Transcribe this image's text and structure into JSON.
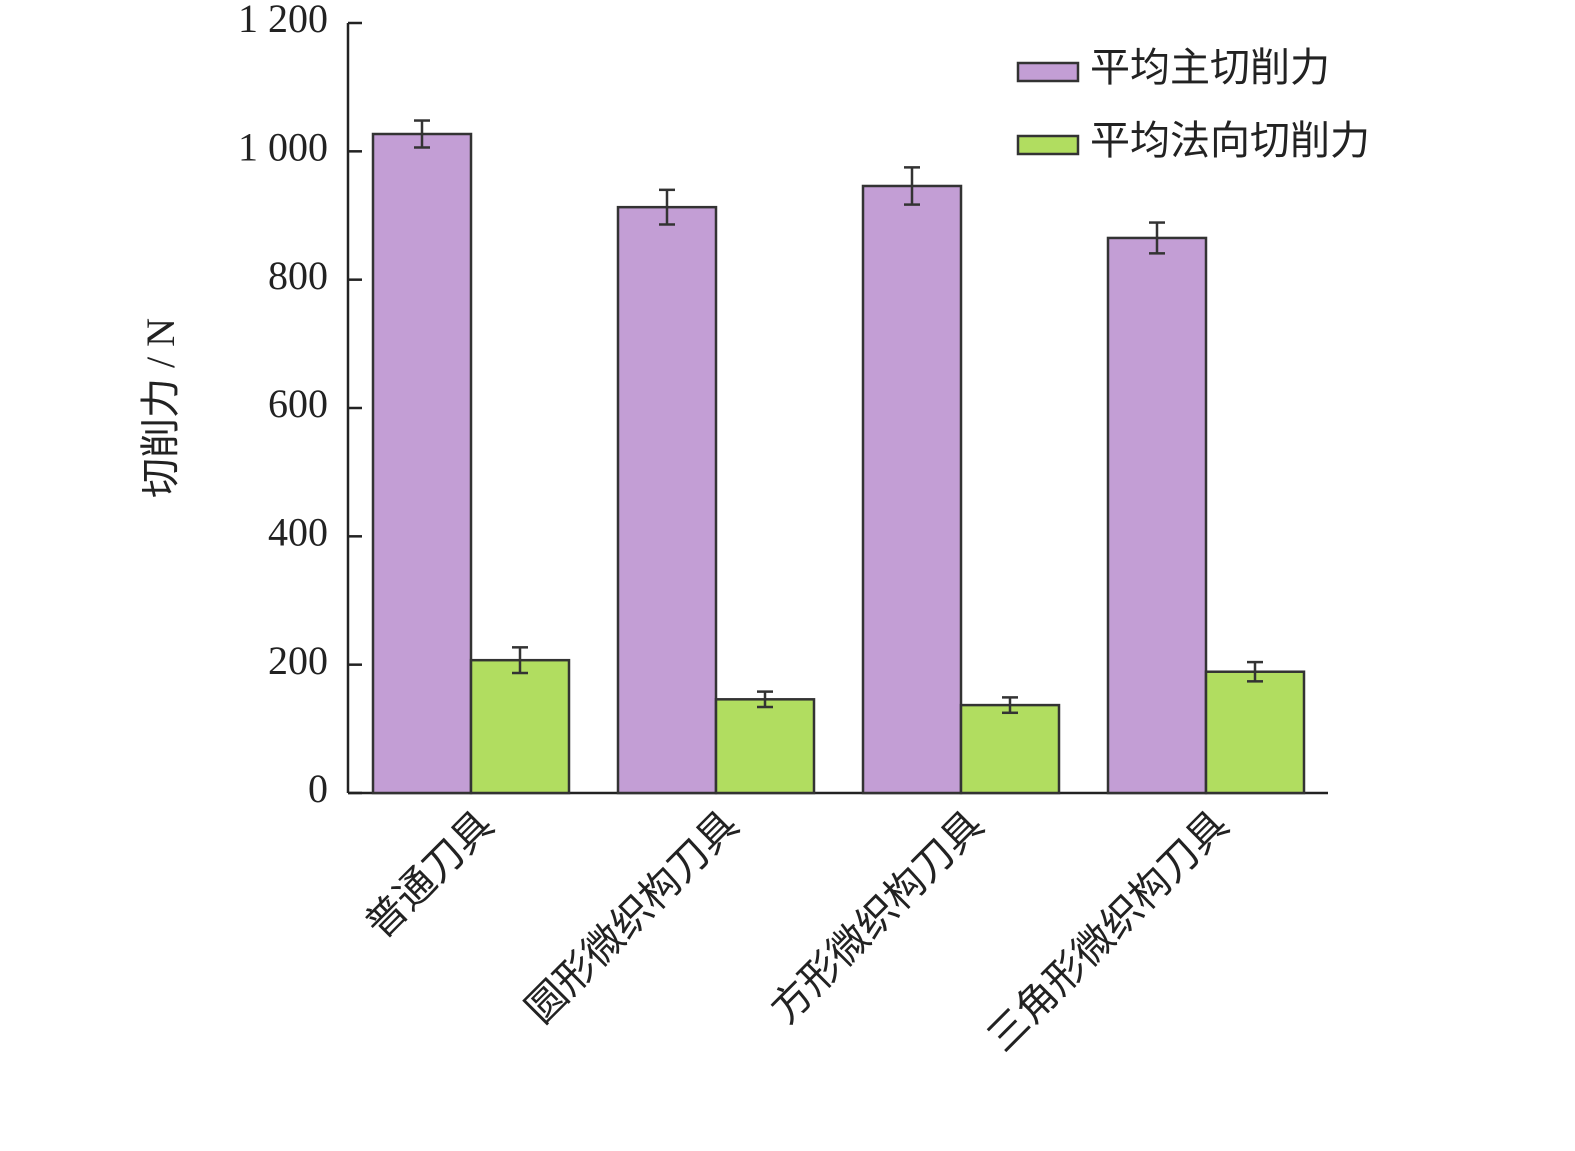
{
  "chart_data": {
    "type": "bar",
    "y_label": "切削力 / N",
    "categories": [
      "普通刀具",
      "圆形微织构刀具",
      "方形微织构刀具",
      "三角形微织构刀具"
    ],
    "series": [
      {
        "name": "平均主切削力",
        "color": "#c39ed5",
        "values": [
          1027,
          913,
          946,
          865
        ],
        "errors": [
          21,
          27,
          29,
          24
        ]
      },
      {
        "name": "平均法向切削力",
        "color": "#b1dd60",
        "values": [
          207,
          146,
          137,
          189
        ],
        "errors": [
          20,
          12,
          12,
          15
        ]
      }
    ],
    "ylim": [
      0,
      1200
    ],
    "yticks": [
      0,
      200,
      400,
      600,
      800,
      {
        "value": 1000,
        "label": "1 000"
      },
      {
        "value": 1200,
        "label": "1 200"
      }
    ],
    "legend": "upper right"
  }
}
